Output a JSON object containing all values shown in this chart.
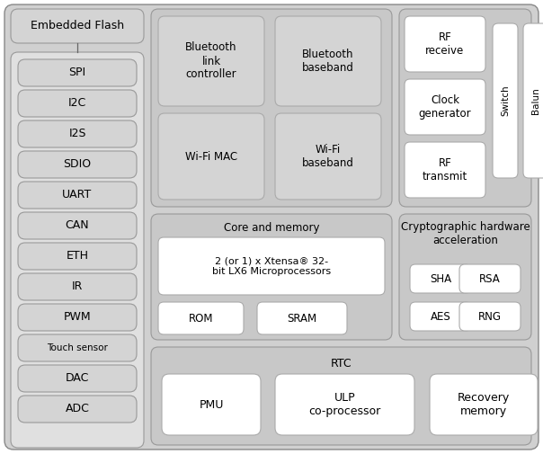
{
  "fig_width": 6.04,
  "fig_height": 5.05,
  "bg_color": "#ffffff",
  "gray_outer": "#d0d0d0",
  "gray_panel": "#c8c8c8",
  "gray_box": "#d4d4d4",
  "gray_subpanel": "#e0e0e0",
  "white_box": "#ffffff",
  "edge_dark": "#999999",
  "edge_light": "#aaaaaa",
  "left_panel_items": [
    "SPI",
    "I2C",
    "I2S",
    "SDIO",
    "UART",
    "CAN",
    "ETH",
    "IR",
    "PWM",
    "Touch sensor",
    "DAC",
    "ADC"
  ],
  "left_panel_label": "Embedded Flash"
}
